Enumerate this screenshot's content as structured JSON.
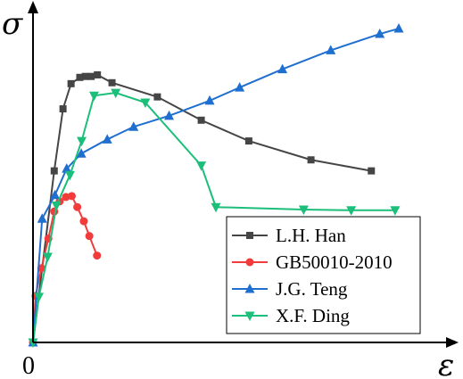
{
  "chart_data": {
    "type": "line",
    "title": "",
    "xlabel": "ε",
    "ylabel": "σ",
    "origin_label": "0",
    "xlim": [
      0,
      1
    ],
    "ylim": [
      0,
      1
    ],
    "grid": false,
    "legend_position": "bottom-right",
    "series": [
      {
        "name": "L.H. Han",
        "color": "#454545",
        "marker": "square",
        "points": [
          [
            0,
            0
          ],
          [
            0.058,
            0.545
          ],
          [
            0.082,
            0.742
          ],
          [
            0.104,
            0.822
          ],
          [
            0.128,
            0.842
          ],
          [
            0.143,
            0.845
          ],
          [
            0.159,
            0.845
          ],
          [
            0.176,
            0.85
          ],
          [
            0.216,
            0.825
          ],
          [
            0.34,
            0.78
          ],
          [
            0.46,
            0.706
          ],
          [
            0.59,
            0.64
          ],
          [
            0.76,
            0.58
          ],
          [
            0.925,
            0.545
          ]
        ]
      },
      {
        "name": "GB50010-2010",
        "color": "#f23b3b",
        "marker": "circle",
        "points": [
          [
            0,
            0
          ],
          [
            0.007,
            0.148
          ],
          [
            0.023,
            0.236
          ],
          [
            0.042,
            0.33
          ],
          [
            0.058,
            0.416
          ],
          [
            0.073,
            0.448
          ],
          [
            0.09,
            0.462
          ],
          [
            0.106,
            0.465
          ],
          [
            0.121,
            0.43
          ],
          [
            0.139,
            0.385
          ],
          [
            0.154,
            0.338
          ],
          [
            0.175,
            0.276
          ]
        ]
      },
      {
        "name": "J.G. Teng",
        "color": "#1f6fd0",
        "marker": "triangle-up",
        "points": [
          [
            0,
            0
          ],
          [
            0.025,
            0.393
          ],
          [
            0.06,
            0.468
          ],
          [
            0.092,
            0.552
          ],
          [
            0.132,
            0.6
          ],
          [
            0.203,
            0.645
          ],
          [
            0.275,
            0.685
          ],
          [
            0.372,
            0.72
          ],
          [
            0.483,
            0.768
          ],
          [
            0.565,
            0.81
          ],
          [
            0.682,
            0.868
          ],
          [
            0.814,
            0.928
          ],
          [
            0.948,
            0.98
          ],
          [
            1.0,
            0.997
          ]
        ]
      },
      {
        "name": "X.F. Ding",
        "color": "#1bbf7a",
        "marker": "triangle-down",
        "points": [
          [
            0,
            0
          ],
          [
            0.016,
            0.145
          ],
          [
            0.04,
            0.272
          ],
          [
            0.064,
            0.435
          ],
          [
            0.101,
            0.532
          ],
          [
            0.133,
            0.64
          ],
          [
            0.167,
            0.784
          ],
          [
            0.226,
            0.793
          ],
          [
            0.307,
            0.762
          ],
          [
            0.46,
            0.562
          ],
          [
            0.5,
            0.43
          ],
          [
            0.74,
            0.422
          ],
          [
            0.87,
            0.42
          ],
          [
            0.99,
            0.42
          ]
        ]
      }
    ]
  }
}
